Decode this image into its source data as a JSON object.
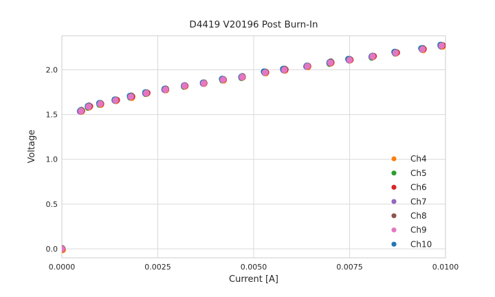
{
  "chart_data": {
    "type": "scatter",
    "title": "D4419 V20196 Post Burn-In",
    "xlabel": "Current [A]",
    "ylabel": "Voltage",
    "xlim": [
      0.0,
      0.01
    ],
    "ylim": [
      -0.1,
      2.38
    ],
    "x_tick_values": [
      0.0,
      0.0025,
      0.005,
      0.0075,
      0.01
    ],
    "x_tick_labels": [
      "0.0000",
      "0.0025",
      "0.0050",
      "0.0075",
      "0.0100"
    ],
    "y_tick_values": [
      0.0,
      0.5,
      1.0,
      1.5,
      2.0
    ],
    "y_tick_labels": [
      "0.0",
      "0.5",
      "1.0",
      "1.5",
      "2.0"
    ],
    "grid": true,
    "legend_position": "lower right",
    "x": [
      0.0,
      0.0005,
      0.0007,
      0.001,
      0.0014,
      0.0018,
      0.0022,
      0.0027,
      0.0032,
      0.0037,
      0.0042,
      0.0047,
      0.0053,
      0.0058,
      0.0064,
      0.007,
      0.0075,
      0.0081,
      0.0087,
      0.0094,
      0.0099
    ],
    "series": [
      {
        "name": "Ch4",
        "color": "#ff7f0e",
        "values": [
          0.0,
          1.54,
          1.59,
          1.62,
          1.66,
          1.7,
          1.74,
          1.78,
          1.82,
          1.85,
          1.89,
          1.92,
          1.97,
          2.0,
          2.04,
          2.08,
          2.11,
          2.15,
          2.19,
          2.23,
          2.27
        ]
      },
      {
        "name": "Ch5",
        "color": "#2ca02c",
        "values": [
          0.0,
          1.54,
          1.59,
          1.62,
          1.66,
          1.7,
          1.74,
          1.78,
          1.82,
          1.85,
          1.89,
          1.92,
          1.97,
          2.0,
          2.04,
          2.08,
          2.11,
          2.15,
          2.19,
          2.23,
          2.27
        ]
      },
      {
        "name": "Ch6",
        "color": "#d62728",
        "values": [
          0.0,
          1.54,
          1.59,
          1.62,
          1.66,
          1.7,
          1.74,
          1.78,
          1.82,
          1.85,
          1.89,
          1.92,
          1.97,
          2.0,
          2.04,
          2.08,
          2.11,
          2.15,
          2.19,
          2.23,
          2.27
        ]
      },
      {
        "name": "Ch7",
        "color": "#9467bd",
        "values": [
          0.0,
          1.54,
          1.59,
          1.62,
          1.66,
          1.7,
          1.74,
          1.78,
          1.82,
          1.85,
          1.89,
          1.92,
          1.97,
          2.0,
          2.04,
          2.08,
          2.11,
          2.15,
          2.19,
          2.23,
          2.27
        ]
      },
      {
        "name": "Ch8",
        "color": "#8c564b",
        "values": [
          0.0,
          1.54,
          1.59,
          1.62,
          1.66,
          1.7,
          1.74,
          1.78,
          1.82,
          1.85,
          1.89,
          1.92,
          1.97,
          2.0,
          2.04,
          2.08,
          2.11,
          2.15,
          2.19,
          2.23,
          2.27
        ]
      },
      {
        "name": "Ch9",
        "color": "#e377c2",
        "values": [
          0.0,
          1.54,
          1.59,
          1.62,
          1.66,
          1.7,
          1.74,
          1.78,
          1.82,
          1.85,
          1.89,
          1.92,
          1.97,
          2.0,
          2.04,
          2.08,
          2.11,
          2.15,
          2.19,
          2.23,
          2.27
        ]
      },
      {
        "name": "Ch10",
        "color": "#1f77b4",
        "values": [
          0.0,
          1.54,
          1.59,
          1.62,
          1.66,
          1.7,
          1.74,
          1.78,
          1.82,
          1.85,
          1.89,
          1.92,
          1.97,
          2.0,
          2.04,
          2.08,
          2.11,
          2.15,
          2.19,
          2.23,
          2.27
        ]
      }
    ],
    "note": "All seven channel curves overlap almost exactly; Ch9 (pink) is plotted on top with slivers of the other channel colors visible at dot edges.",
    "colors": {
      "grid": "#d9d9d9",
      "frame": "#cccccc",
      "text": "#262626",
      "background": "#ffffff"
    }
  }
}
